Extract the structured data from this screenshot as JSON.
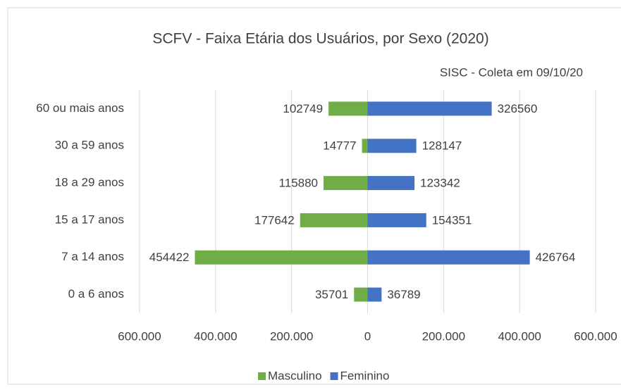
{
  "chart_data": {
    "type": "bar",
    "orientation": "horizontal",
    "title": "SCFV - Faixa Etária dos Usuários, por Sexo (2020)",
    "subtitle": "SISC - Coleta em 09/10/20",
    "categories": [
      "60 ou mais anos",
      "30 a 59 anos",
      "18 a 29 anos",
      "15 a 17 anos",
      "7 a 14 anos",
      "0 a 6 anos"
    ],
    "series": [
      {
        "name": "Masculino",
        "color": "#70ad47",
        "values": [
          102749,
          14777,
          115880,
          177642,
          454422,
          35701
        ]
      },
      {
        "name": "Feminino",
        "color": "#4472c4",
        "values": [
          326560,
          128147,
          123342,
          154351,
          426764,
          36789
        ]
      }
    ],
    "xlim": [
      -600000,
      600000
    ],
    "xticks": [
      {
        "value": -600000,
        "label": "600.000"
      },
      {
        "value": -400000,
        "label": "400.000"
      },
      {
        "value": -200000,
        "label": "200.000"
      },
      0,
      {
        "value": 200000,
        "label": "200.000"
      },
      {
        "value": 400000,
        "label": "400.000"
      },
      {
        "value": 600000,
        "label": "600.000"
      }
    ],
    "grid": true,
    "legend": "bottom"
  }
}
